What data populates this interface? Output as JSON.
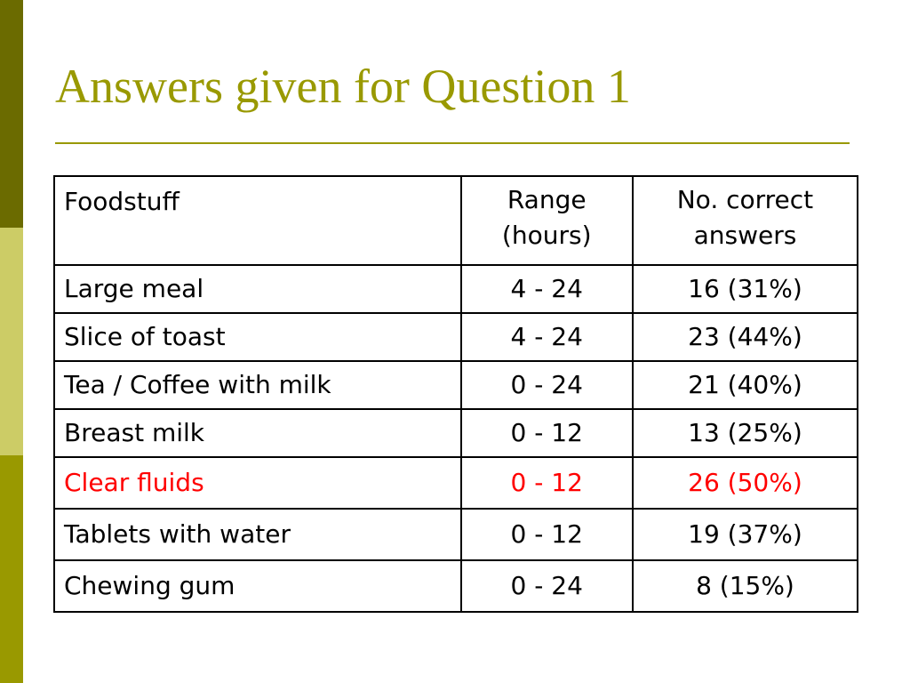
{
  "slide": {
    "title": "Answers given for Question 1",
    "colors": {
      "accent": "#999900",
      "bar_dark": "#6b6b00",
      "bar_light": "#cccc66",
      "highlight_text": "#ff0000"
    }
  },
  "table": {
    "headers": {
      "foodstuff": "Foodstuff",
      "range_line1": "Range",
      "range_line2": "(hours)",
      "correct_line1": "No. correct",
      "correct_line2": "answers"
    },
    "rows": [
      {
        "foodstuff": "Large meal",
        "range": "4 - 24",
        "correct": "16 (31%)",
        "highlighted": false
      },
      {
        "foodstuff": "Slice of toast",
        "range": "4 - 24",
        "correct": "23 (44%)",
        "highlighted": false
      },
      {
        "foodstuff": "Tea / Coffee with milk",
        "range": "0 - 24",
        "correct": "21 (40%)",
        "highlighted": false
      },
      {
        "foodstuff": "Breast milk",
        "range": "0 - 12",
        "correct": "13 (25%)",
        "highlighted": false
      },
      {
        "foodstuff": "Clear fluids",
        "range": "0 - 12",
        "correct": "26 (50%)",
        "highlighted": true
      },
      {
        "foodstuff": "Tablets with water",
        "range": "0 - 12",
        "correct": "19 (37%)",
        "highlighted": false
      },
      {
        "foodstuff": "Chewing gum",
        "range": "0 - 24",
        "correct": "8 (15%)",
        "highlighted": false
      }
    ]
  }
}
